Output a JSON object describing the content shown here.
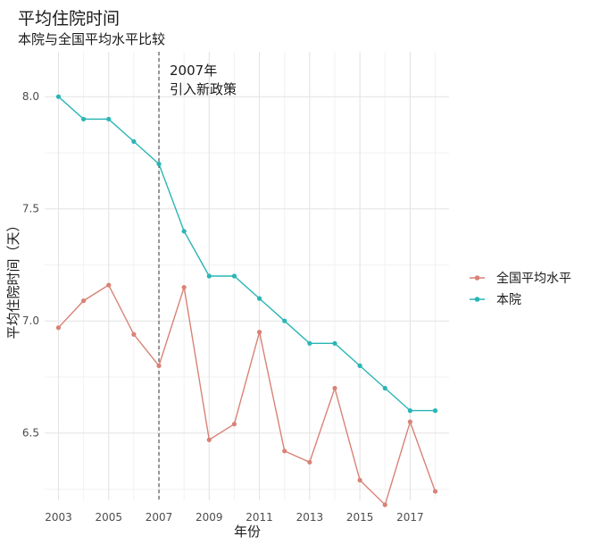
{
  "chart_data": {
    "type": "line",
    "title": "平均住院时间",
    "subtitle": "本院与全国平均水平比较",
    "xlabel": "年份",
    "ylabel": "平均住院时间（天）",
    "x": [
      2003,
      2004,
      2005,
      2006,
      2007,
      2008,
      2009,
      2010,
      2011,
      2012,
      2013,
      2014,
      2015,
      2016,
      2017,
      2018
    ],
    "xticks": [
      "2003",
      "2005",
      "2007",
      "2009",
      "2011",
      "2013",
      "2015",
      "2017"
    ],
    "yticks": [
      "6.5",
      "7.0",
      "7.5",
      "8.0"
    ],
    "ylim": [
      6.2,
      8.2
    ],
    "grid": true,
    "legend_position": "right",
    "series": [
      {
        "name": "全国平均水平",
        "color": "#d98276",
        "values": [
          6.97,
          7.09,
          7.16,
          6.94,
          6.8,
          7.15,
          6.47,
          6.54,
          6.95,
          6.42,
          6.37,
          6.7,
          6.29,
          6.18,
          6.55,
          6.24
        ]
      },
      {
        "name": "本院",
        "color": "#2ab5b5",
        "values": [
          8.0,
          7.9,
          7.9,
          7.8,
          7.7,
          7.4,
          7.2,
          7.2,
          7.1,
          7.0,
          6.9,
          6.9,
          6.8,
          6.7,
          6.6,
          6.6
        ]
      }
    ],
    "annotation": {
      "x": 2007,
      "lines": [
        "2007年",
        "引入新政策"
      ]
    }
  }
}
